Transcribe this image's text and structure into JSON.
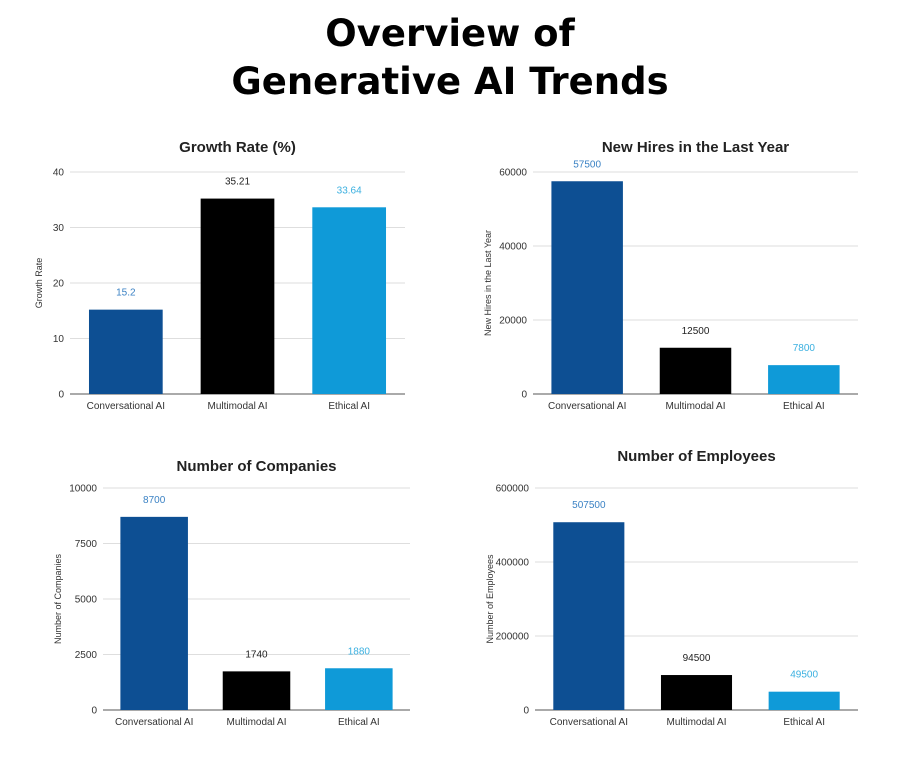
{
  "page": {
    "title_line1": "Overview of",
    "title_line2": "Generative AI Trends"
  },
  "colors": {
    "Conversational AI": "#0d4f93",
    "Multimodal AI": "#000000",
    "Ethical AI": "#0f9ad8"
  },
  "label_colors": {
    "Conversational AI": "#3b82c4",
    "Multimodal AI": "#222222",
    "Ethical AI": "#3bb0e0"
  },
  "chart_data": [
    {
      "type": "bar",
      "title": "Growth Rate (%)",
      "ylabel": "Growth Rate",
      "xlabel": "",
      "categories": [
        "Conversational AI",
        "Multimodal AI",
        "Ethical AI"
      ],
      "values": [
        15.2,
        35.21,
        33.64
      ],
      "value_labels": [
        "15.2",
        "35.21",
        "33.64"
      ],
      "ylim": [
        0,
        40
      ],
      "yticks": [
        0,
        10,
        20,
        30,
        40
      ],
      "ytick_labels": [
        "0",
        "10",
        "20",
        "30",
        "40"
      ],
      "grid": true
    },
    {
      "type": "bar",
      "title": "New Hires in the Last Year",
      "ylabel": "New Hires in the Last Year",
      "xlabel": "",
      "categories": [
        "Conversational AI",
        "Multimodal AI",
        "Ethical AI"
      ],
      "values": [
        57500,
        12500,
        7800
      ],
      "value_labels": [
        "57500",
        "12500",
        "7800"
      ],
      "ylim": [
        0,
        60000
      ],
      "yticks": [
        0,
        20000,
        40000,
        60000
      ],
      "ytick_labels": [
        "0",
        "20000",
        "40000",
        "60000"
      ],
      "grid": true
    },
    {
      "type": "bar",
      "title": "Number of Companies",
      "ylabel": "Number of Companies",
      "xlabel": "",
      "categories": [
        "Conversational AI",
        "Multimodal AI",
        "Ethical AI"
      ],
      "values": [
        8700,
        1740,
        1880
      ],
      "value_labels": [
        "8700",
        "1740",
        "1880"
      ],
      "ylim": [
        0,
        10000
      ],
      "yticks": [
        0,
        2500,
        5000,
        7500,
        10000
      ],
      "ytick_labels": [
        "0",
        "2500",
        "5000",
        "7500",
        "10000"
      ],
      "grid": true
    },
    {
      "type": "bar",
      "title": "Number of Employees",
      "ylabel": "Number of Employees",
      "xlabel": "",
      "categories": [
        "Conversational AI",
        "Multimodal AI",
        "Ethical AI"
      ],
      "values": [
        507500,
        94500,
        49500
      ],
      "value_labels": [
        "507500",
        "94500",
        "49500"
      ],
      "ylim": [
        0,
        600000
      ],
      "yticks": [
        0,
        200000,
        400000,
        600000
      ],
      "ytick_labels": [
        "0",
        "200000",
        "400000",
        "600000"
      ],
      "grid": true
    }
  ]
}
